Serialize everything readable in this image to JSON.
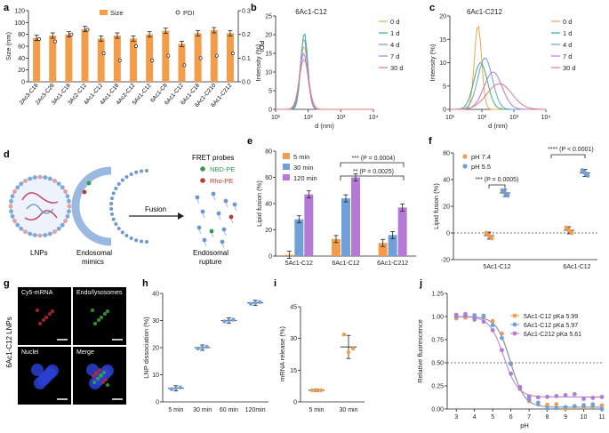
{
  "panels": {
    "a": {
      "label": "a"
    },
    "b": {
      "label": "b"
    },
    "c": {
      "label": "c"
    },
    "d": {
      "label": "d",
      "lnps": "LNPs",
      "endosomal_1": "Endosomal",
      "endosomal_2": "mimics",
      "fusion": "Fusion",
      "fret": "FRET probes",
      "nbd": "NBD-PE",
      "rho": "Rho-PE",
      "rupture_1": "Endosomal",
      "rupture_2": "rupture"
    },
    "e": {
      "label": "e"
    },
    "f": {
      "label": "f"
    },
    "g": {
      "label": "g",
      "side": "6Ac1-C12 LNPs",
      "tiles": [
        "Cy5-mRNA",
        "Endo/lysosomes",
        "Nuclei",
        "Merge"
      ]
    },
    "h": {
      "label": "h"
    },
    "i": {
      "label": "i"
    },
    "j": {
      "label": "j"
    }
  },
  "colors": {
    "orange": "#f39c4a",
    "blue": "#6fa0d8",
    "purple": "#b57ad6",
    "green": "#2ca02c",
    "red": "#c0392b"
  },
  "chart_data": [
    {
      "id": "a",
      "type": "bar",
      "categories": [
        "2Ac3-C18",
        "2Ac3-C28",
        "3Ac1-C18",
        "3Ac2-C12",
        "4Ac1-C12",
        "4Ac1-C18",
        "4Ac2-C12",
        "5Ac1-C12",
        "6Ac1-C8",
        "6Ac1-C12",
        "6Ac1-C18",
        "6Ac1-C210",
        "6Ac1-C212"
      ],
      "series": [
        {
          "name": "Size",
          "values": [
            74,
            78,
            80,
            89,
            73,
            78,
            73,
            80,
            86,
            64,
            82,
            87,
            82
          ]
        },
        {
          "name": "PDI",
          "values": [
            0.18,
            0.17,
            0.2,
            0.22,
            0.12,
            0.09,
            0.15,
            0.09,
            0.11,
            0.07,
            0.1,
            0.11,
            0.12
          ]
        }
      ],
      "ylabel": "Size (nm)",
      "y2label": "PDI",
      "ylim": [
        0,
        120
      ],
      "y2lim": [
        0,
        0.3
      ],
      "yticks": [
        "0",
        "20",
        "40",
        "60",
        "80",
        "100",
        "120"
      ],
      "y2ticks": [
        "0.0",
        "0.1",
        "0.2",
        "0.3"
      ],
      "legend": [
        "Size",
        "PDI"
      ]
    },
    {
      "id": "b",
      "type": "line",
      "title": "6Ac1-C12",
      "xlabel": "d (nm)",
      "ylabel": "Intensity (%)",
      "ylim": [
        0,
        25
      ],
      "xticks": [
        "10¹",
        "10²",
        "10³",
        "10⁴"
      ],
      "yticks": [
        "0",
        "5",
        "10",
        "15",
        "20",
        "25"
      ],
      "series": [
        {
          "name": "0 d",
          "peak": 17
        },
        {
          "name": "1 d",
          "peak": 20.5
        },
        {
          "name": "4 d",
          "peak": 19
        },
        {
          "name": "7 d",
          "peak": 15
        },
        {
          "name": "30 d",
          "peak": 13.5
        }
      ]
    },
    {
      "id": "c",
      "type": "line",
      "title": "6Ac1-C212",
      "xlabel": "d (nm)",
      "ylabel": "Intensity (%)",
      "ylim": [
        0,
        20
      ],
      "xticks": [
        "10¹",
        "10²",
        "10³",
        "10⁴"
      ],
      "yticks": [
        "0",
        "5",
        "10",
        "15",
        "20"
      ],
      "series": [
        {
          "name": "0 d",
          "peak": 18
        },
        {
          "name": "1 d",
          "peak": 10
        },
        {
          "name": "4 d",
          "peak": 11
        },
        {
          "name": "7 d",
          "peak": 8
        },
        {
          "name": "30 d",
          "peak": 5.5
        }
      ]
    },
    {
      "id": "e",
      "type": "bar",
      "categories": [
        "5Ac1-C12",
        "6Ac1-C12",
        "6Ac1-C212"
      ],
      "ylabel": "Lipid fusion (%)",
      "ylim": [
        0,
        80
      ],
      "yticks": [
        "0",
        "20",
        "40",
        "60",
        "80"
      ],
      "series": [
        {
          "name": "5 min",
          "values": [
            1,
            13,
            10
          ]
        },
        {
          "name": "30 min",
          "values": [
            28,
            44,
            16
          ]
        },
        {
          "name": "120 min",
          "values": [
            47,
            60,
            37
          ]
        }
      ],
      "annotations": [
        "*** (P = 0.0004)",
        "** (P = 0.0025)"
      ]
    },
    {
      "id": "f",
      "type": "scatter",
      "categories": [
        "5Ac1-C12",
        "6Ac1-C12"
      ],
      "ylabel": "Lipid fusion (%)",
      "ylim": [
        -20,
        60
      ],
      "yticks": [
        "-20",
        "0",
        "20",
        "40",
        "60"
      ],
      "series": [
        {
          "name": "pH 7.4",
          "values": [
            -2,
            2
          ]
        },
        {
          "name": "pH 5.5",
          "values": [
            30,
            45
          ]
        }
      ],
      "annotations": [
        "*** (P = 0.0005)",
        "**** (P < 0.0001)"
      ]
    },
    {
      "id": "h",
      "type": "scatter",
      "categories": [
        "5 min",
        "30 min",
        "60 min",
        "120min"
      ],
      "ylabel": "LNP dissociation (%)",
      "ylim": [
        0,
        40
      ],
      "yticks": [
        "0",
        "10",
        "20",
        "30",
        "40"
      ],
      "values": [
        5,
        20,
        30,
        36.5
      ]
    },
    {
      "id": "i",
      "type": "scatter",
      "categories": [
        "5 min",
        "30 min"
      ],
      "ylabel": "mRNA release (%)",
      "ylim": [
        0,
        45
      ],
      "yticks": [
        "0",
        "15",
        "30",
        "45"
      ],
      "values": [
        5.5,
        26
      ]
    },
    {
      "id": "j",
      "type": "line",
      "xlabel": "pH",
      "ylabel": "Relative fluorescence",
      "xlim": [
        2.5,
        11
      ],
      "ylim": [
        0,
        1.25
      ],
      "xticks": [
        "3",
        "4",
        "5",
        "6",
        "7",
        "8",
        "9",
        "10",
        "11"
      ],
      "yticks": [
        "0.00",
        "0.25",
        "0.50",
        "0.75",
        "1.00",
        "1.25"
      ],
      "series": [
        {
          "name": "5Ac1-C12 pKa 5.99",
          "pka": 5.99
        },
        {
          "name": "6Ac1-C12 pKa 5.97",
          "pka": 5.97
        },
        {
          "name": "6Ac1-C212 pKa 5.61",
          "pka": 5.61
        }
      ]
    }
  ]
}
